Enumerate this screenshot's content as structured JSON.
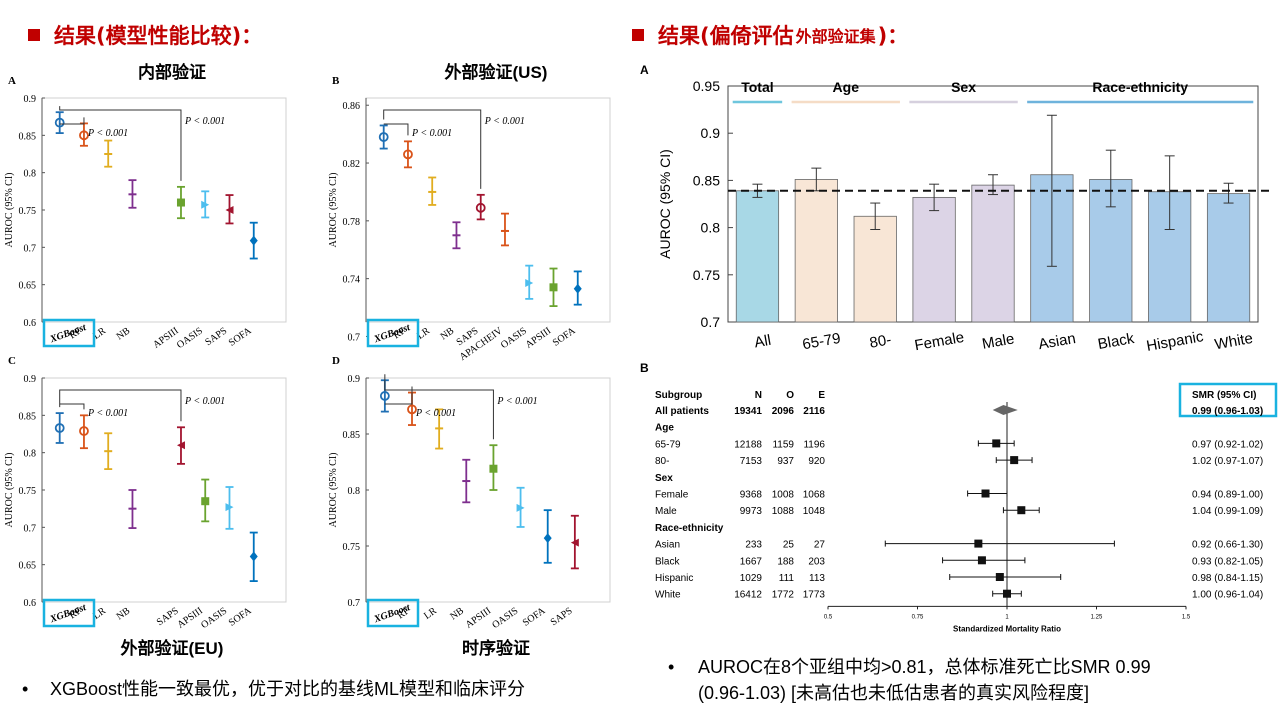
{
  "left_title": {
    "main": "结果(模型性能比较)",
    "colon": "："
  },
  "right_title": {
    "main": "结果(偏倚评估",
    "sub": "外部验证集",
    "end": ")："
  },
  "colors": {
    "accent": "#c00000",
    "highlight": "#19b2e0"
  },
  "panels": [
    {
      "letter": "A",
      "title": "内部验证",
      "title_pos": "top",
      "ylabel": "AUROC (95% CI)",
      "yticks": [
        "0.6",
        "0.65",
        "0.7",
        "0.75",
        "0.8",
        "0.85",
        "0.9"
      ],
      "p1": "P < 0.001",
      "p2": "P < 0.001"
    },
    {
      "letter": "B",
      "title": "外部验证(US)",
      "title_pos": "top",
      "ylabel": "AUROC (95% CI)",
      "yticks": [
        "0.7",
        "0.74",
        "0.78",
        "0.82",
        "0.86"
      ],
      "p1": "P < 0.001",
      "p2": "P < 0.001"
    },
    {
      "letter": "C",
      "title": "外部验证(EU)",
      "title_pos": "bottom",
      "ylabel": "AUROC (95% CI)",
      "yticks": [
        "0.6",
        "0.65",
        "0.7",
        "0.75",
        "0.8",
        "0.85",
        "0.9"
      ],
      "p1": "P < 0.001",
      "p2": "P < 0.001"
    },
    {
      "letter": "D",
      "title": "时序验证",
      "title_pos": "bottom",
      "ylabel": "AUROC (95% CI)",
      "yticks": [
        "0.7",
        "0.75",
        "0.8",
        "0.85",
        "0.9"
      ],
      "p1": "P < 0.001",
      "p2": "P < 0.001"
    }
  ],
  "chart_data": [
    {
      "type": "scatter",
      "panel": "A",
      "ylim": [
        0.6,
        0.9
      ],
      "ylabel": "AUROC (95% CI)",
      "categories": [
        "XGBoost",
        "RF",
        "LR",
        "NB",
        "APSIII",
        "OASIS",
        "SAPS",
        "SOFA"
      ],
      "values": [
        0.867,
        0.85,
        0.825,
        0.771,
        0.76,
        0.757,
        0.75,
        0.709
      ],
      "ci_low": [
        0.853,
        0.836,
        0.808,
        0.753,
        0.739,
        0.74,
        0.732,
        0.685
      ],
      "ci_high": [
        0.881,
        0.866,
        0.843,
        0.79,
        0.781,
        0.775,
        0.77,
        0.733
      ],
      "colors": [
        "#1f6fb4",
        "#d95319",
        "#e1ad1f",
        "#7e2f8e",
        "#6aa32f",
        "#4dbeee",
        "#a2142f",
        "#0072bd"
      ],
      "markers": [
        "circle",
        "circle",
        "bar",
        "bar",
        "square",
        "right",
        "left",
        "diamond"
      ],
      "x": [
        1,
        2,
        3,
        4,
        6,
        7,
        8,
        9
      ]
    },
    {
      "type": "scatter",
      "panel": "B",
      "ylim": [
        0.71,
        0.865
      ],
      "ylabel": "AUROC (95% CI)",
      "categories": [
        "XGBoost",
        "RF",
        "LR",
        "NB",
        "SAPS",
        "APACHEIV",
        "OASIS",
        "APSIII",
        "SOFA"
      ],
      "values": [
        0.838,
        0.826,
        0.8,
        0.77,
        0.789,
        0.773,
        0.737,
        0.734,
        0.733
      ],
      "ci_low": [
        0.83,
        0.817,
        0.791,
        0.761,
        0.781,
        0.763,
        0.726,
        0.721,
        0.722
      ],
      "ci_high": [
        0.846,
        0.835,
        0.81,
        0.779,
        0.798,
        0.785,
        0.749,
        0.747,
        0.745
      ],
      "colors": [
        "#1f6fb4",
        "#d95319",
        "#e1ad1f",
        "#7e2f8e",
        "#a2142f",
        "#d95319",
        "#4dbeee",
        "#6aa32f",
        "#0072bd"
      ],
      "markers": [
        "circle",
        "circle",
        "bar",
        "bar",
        "circle",
        "bar",
        "right",
        "square",
        "diamond"
      ],
      "x": [
        1,
        2,
        3,
        4,
        5,
        6,
        7,
        8,
        9
      ]
    },
    {
      "type": "scatter",
      "panel": "C",
      "ylim": [
        0.6,
        0.9
      ],
      "ylabel": "AUROC (95% CI)",
      "categories": [
        "XGBoost",
        "RF",
        "LR",
        "NB",
        "SAPS",
        "APSIII",
        "OASIS",
        "SOFA"
      ],
      "values": [
        0.833,
        0.829,
        0.802,
        0.725,
        0.81,
        0.735,
        0.727,
        0.661
      ],
      "ci_low": [
        0.813,
        0.806,
        0.778,
        0.699,
        0.785,
        0.708,
        0.698,
        0.628
      ],
      "ci_high": [
        0.853,
        0.85,
        0.826,
        0.75,
        0.834,
        0.764,
        0.754,
        0.693
      ],
      "colors": [
        "#1f6fb4",
        "#d95319",
        "#e1ad1f",
        "#7e2f8e",
        "#a2142f",
        "#6aa32f",
        "#4dbeee",
        "#0072bd"
      ],
      "markers": [
        "circle",
        "circle",
        "bar",
        "bar",
        "left",
        "square",
        "right",
        "diamond"
      ],
      "x": [
        1,
        2,
        3,
        4,
        6,
        7,
        8,
        9
      ]
    },
    {
      "type": "scatter",
      "panel": "D",
      "ylim": [
        0.7,
        0.9
      ],
      "ylabel": "AUROC (95% CI)",
      "categories": [
        "XGBoost",
        "RF",
        "LR",
        "NB",
        "APSIII",
        "OASIS",
        "SOFA",
        "SAPS"
      ],
      "values": [
        0.884,
        0.872,
        0.855,
        0.808,
        0.819,
        0.784,
        0.757,
        0.753
      ],
      "ci_low": [
        0.87,
        0.858,
        0.837,
        0.789,
        0.8,
        0.767,
        0.735,
        0.73
      ],
      "ci_high": [
        0.898,
        0.887,
        0.872,
        0.827,
        0.84,
        0.802,
        0.782,
        0.777
      ],
      "colors": [
        "#1f6fb4",
        "#d95319",
        "#e1ad1f",
        "#7e2f8e",
        "#6aa32f",
        "#4dbeee",
        "#0072bd",
        "#a2142f"
      ],
      "markers": [
        "circle",
        "circle",
        "bar",
        "bar",
        "square",
        "right",
        "diamond",
        "left"
      ],
      "x": [
        1,
        2,
        3,
        4,
        5,
        6,
        7,
        8
      ]
    },
    {
      "type": "bar",
      "panel": "A-right",
      "ylabel": "AUROC (95% CI)",
      "ylim": [
        0.7,
        0.95
      ],
      "yticks": [
        "0.7",
        "0.75",
        "0.8",
        "0.85",
        "0.9",
        "0.95"
      ],
      "groups": [
        "Total",
        "Age",
        "Sex",
        "Race-ethnicity"
      ],
      "categories": [
        "All",
        "65-79",
        "80-",
        "Female",
        "Male",
        "Asian",
        "Black",
        "Hispanic",
        "White"
      ],
      "values": [
        0.839,
        0.851,
        0.812,
        0.832,
        0.845,
        0.856,
        0.851,
        0.838,
        0.836
      ],
      "ci_low": [
        0.832,
        0.839,
        0.798,
        0.818,
        0.835,
        0.759,
        0.822,
        0.798,
        0.826
      ],
      "ci_high": [
        0.846,
        0.863,
        0.826,
        0.846,
        0.856,
        0.919,
        0.882,
        0.876,
        0.847
      ],
      "colors": [
        "#a8d8e6",
        "#f8e6d6",
        "#f8e6d6",
        "#dcd4e6",
        "#dcd4e6",
        "#a8cbe9",
        "#a8cbe9",
        "#a8cbe9",
        "#a8cbe9"
      ],
      "reference": 0.839
    },
    {
      "type": "forest",
      "panel": "B-right",
      "xlabel": "Standardized Mortality Ratio",
      "xticks": [
        "0.5",
        "0.75",
        "1",
        "1.25",
        "1.5"
      ],
      "xlim": [
        0.5,
        1.5
      ],
      "headers": {
        "subgroup": "Subgroup",
        "n": "N",
        "o": "O",
        "e": "E",
        "smr": "SMR (95% CI)"
      },
      "rows": [
        {
          "label": "All patients",
          "bold": true,
          "n": "19341",
          "o": "2096",
          "e": "2116",
          "smr": "0.99 (0.96-1.03)",
          "est": 0.99,
          "lo": 0.96,
          "hi": 1.03,
          "marker": "diamond"
        },
        {
          "label": "Age",
          "bold": true,
          "header": true
        },
        {
          "label": "65-79",
          "n": "12188",
          "o": "1159",
          "e": "1196",
          "smr": "0.97 (0.92-1.02)",
          "est": 0.97,
          "lo": 0.92,
          "hi": 1.02
        },
        {
          "label": "80-",
          "n": "7153",
          "o": "937",
          "e": "920",
          "smr": "1.02 (0.97-1.07)",
          "est": 1.02,
          "lo": 0.97,
          "hi": 1.07
        },
        {
          "label": "Sex",
          "bold": true,
          "header": true
        },
        {
          "label": "Female",
          "n": "9368",
          "o": "1008",
          "e": "1068",
          "smr": "0.94 (0.89-1.00)",
          "est": 0.94,
          "lo": 0.89,
          "hi": 1.0
        },
        {
          "label": "Male",
          "n": "9973",
          "o": "1088",
          "e": "1048",
          "smr": "1.04 (0.99-1.09)",
          "est": 1.04,
          "lo": 0.99,
          "hi": 1.09
        },
        {
          "label": "Race-ethnicity",
          "bold": true,
          "header": true
        },
        {
          "label": "Asian",
          "n": "233",
          "o": "25",
          "e": "27",
          "smr": "0.92 (0.66-1.30)",
          "est": 0.92,
          "lo": 0.66,
          "hi": 1.3
        },
        {
          "label": "Black",
          "n": "1667",
          "o": "188",
          "e": "203",
          "smr": "0.93 (0.82-1.05)",
          "est": 0.93,
          "lo": 0.82,
          "hi": 1.05
        },
        {
          "label": "Hispanic",
          "n": "1029",
          "o": "111",
          "e": "113",
          "smr": "0.98 (0.84-1.15)",
          "est": 0.98,
          "lo": 0.84,
          "hi": 1.15
        },
        {
          "label": "White",
          "n": "16412",
          "o": "1772",
          "e": "1773",
          "smr": "1.00 (0.96-1.04)",
          "est": 1.0,
          "lo": 0.96,
          "hi": 1.04
        }
      ]
    }
  ],
  "right_panel_letters": {
    "a": "A",
    "b": "B"
  },
  "bullets": {
    "left": "XGBoost性能一致最优，优于对比的基线ML模型和临床评分",
    "right_line1": "AUROC在8个亚组中均>0.81，总体标准死亡比SMR 0.99",
    "right_line2": "(0.96-1.03) [未高估也未低估患者的真实风险程度]",
    "dot": "•"
  }
}
